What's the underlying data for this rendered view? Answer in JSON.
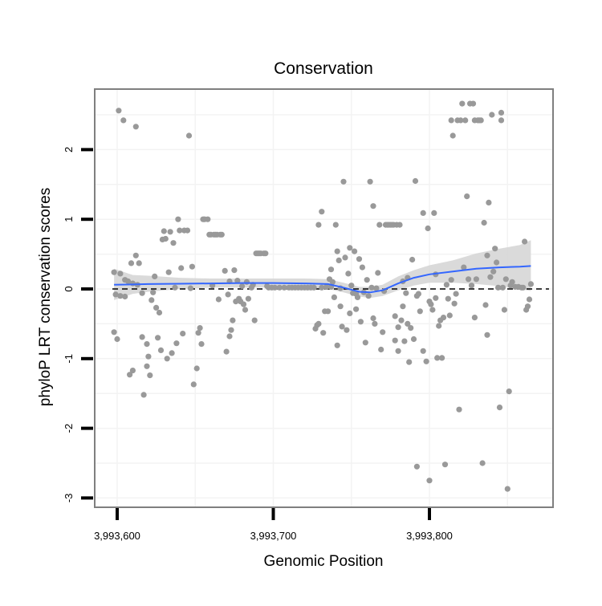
{
  "chart_data": {
    "type": "scatter",
    "title": "Conservation",
    "xlabel": "Genomic Position",
    "ylabel": "phyloP LRT conservation scores",
    "xlim": [
      3993590,
      3993868
    ],
    "ylim": [
      -3.15,
      2.95
    ],
    "x_ticks": [
      3993600,
      3993700,
      3993800
    ],
    "x_tick_labels": [
      "3,993,600",
      "3,993,700",
      "3,993,800"
    ],
    "y_ticks": [
      -3,
      -2,
      -1,
      0,
      1,
      2
    ],
    "y_tick_labels": [
      "-3",
      "-2",
      "-1",
      "0",
      "1",
      "2"
    ],
    "grid": true,
    "reference_line": {
      "y": 0,
      "style": "dashed"
    },
    "colors": {
      "points": "#999999",
      "smooth_line": "#3366ff",
      "band": "#d4d4d4",
      "frame": "#7f7f7f",
      "grid": "#f3f3f3"
    },
    "series": [
      {
        "kind": "points",
        "points": [
          [
            3993598,
            0.24
          ],
          [
            3993599,
            -0.08
          ],
          [
            3993598,
            -0.62
          ],
          [
            3993600,
            -0.72
          ],
          [
            3993601,
            2.56
          ],
          [
            3993602,
            0.22
          ],
          [
            3993602,
            -0.1
          ],
          [
            3993604,
            2.42
          ],
          [
            3993605,
            0.13
          ],
          [
            3993605,
            -0.11
          ],
          [
            3993607,
            0.11
          ],
          [
            3993608,
            -1.23
          ],
          [
            3993609,
            0.37
          ],
          [
            3993610,
            0.08
          ],
          [
            3993610,
            -1.17
          ],
          [
            3993612,
            2.33
          ],
          [
            3993612,
            0.48
          ],
          [
            3993613,
            0.06
          ],
          [
            3993614,
            0.37
          ],
          [
            3993616,
            -0.06
          ],
          [
            3993616,
            -0.69
          ],
          [
            3993617,
            -1.52
          ],
          [
            3993619,
            -1.11
          ],
          [
            3993619,
            -0.79
          ],
          [
            3993620,
            -0.97
          ],
          [
            3993621,
            -1.24
          ],
          [
            3993622,
            -0.16
          ],
          [
            3993623,
            -0.05
          ],
          [
            3993624,
            0.18
          ],
          [
            3993625,
            -0.27
          ],
          [
            3993626,
            -0.7
          ],
          [
            3993627,
            -0.34
          ],
          [
            3993628,
            -0.88
          ],
          [
            3993629,
            0.71
          ],
          [
            3993630,
            0.83
          ],
          [
            3993631,
            0.72
          ],
          [
            3993632,
            -1.0
          ],
          [
            3993633,
            0.24
          ],
          [
            3993634,
            0.82
          ],
          [
            3993635,
            -0.92
          ],
          [
            3993636,
            0.66
          ],
          [
            3993637,
            0.02
          ],
          [
            3993638,
            -0.78
          ],
          [
            3993639,
            1.0
          ],
          [
            3993640,
            0.84
          ],
          [
            3993641,
            0.3
          ],
          [
            3993642,
            -0.64
          ],
          [
            3993643,
            0.84
          ],
          [
            3993645,
            0.84
          ],
          [
            3993646,
            2.2
          ],
          [
            3993647,
            0.01
          ],
          [
            3993648,
            0.32
          ],
          [
            3993649,
            -1.37
          ],
          [
            3993651,
            -1.14
          ],
          [
            3993652,
            -0.63
          ],
          [
            3993653,
            -0.56
          ],
          [
            3993654,
            -0.79
          ],
          [
            3993655,
            1.0
          ],
          [
            3993656,
            1.0
          ],
          [
            3993658,
            1.0
          ],
          [
            3993659,
            0.78
          ],
          [
            3993660,
            0.78
          ],
          [
            3993661,
            0.05
          ],
          [
            3993662,
            0.78
          ],
          [
            3993663,
            0.78
          ],
          [
            3993664,
            0.78
          ],
          [
            3993665,
            -0.15
          ],
          [
            3993666,
            0.78
          ],
          [
            3993667,
            0.78
          ],
          [
            3993669,
            0.26
          ],
          [
            3993670,
            -0.9
          ],
          [
            3993671,
            -0.08
          ],
          [
            3993672,
            -0.68
          ],
          [
            3993672,
            0.11
          ],
          [
            3993673,
            -0.59
          ],
          [
            3993674,
            -0.45
          ],
          [
            3993675,
            0.27
          ],
          [
            3993676,
            -0.18
          ],
          [
            3993677,
            0.12
          ],
          [
            3993678,
            -0.14
          ],
          [
            3993679,
            -0.18
          ],
          [
            3993680,
            0.04
          ],
          [
            3993681,
            -0.22
          ],
          [
            3993682,
            -0.3
          ],
          [
            3993683,
            0.1
          ],
          [
            3993684,
            -0.14
          ],
          [
            3993686,
            0.02
          ],
          [
            3993687,
            0.06
          ],
          [
            3993688,
            -0.45
          ],
          [
            3993689,
            0.51
          ],
          [
            3993690,
            0.51
          ],
          [
            3993691,
            0.51
          ],
          [
            3993692,
            0.51
          ],
          [
            3993694,
            0.51
          ],
          [
            3993695,
            0.51
          ],
          [
            3993696,
            0.04
          ],
          [
            3993697,
            0.02
          ],
          [
            3993699,
            0.02
          ],
          [
            3993701,
            0.02
          ],
          [
            3993704,
            0.02
          ],
          [
            3993707,
            0.02
          ],
          [
            3993710,
            0.02
          ],
          [
            3993712,
            0.02
          ],
          [
            3993714,
            0.02
          ],
          [
            3993716,
            0.02
          ],
          [
            3993718,
            0.02
          ],
          [
            3993720,
            0.02
          ],
          [
            3993722,
            0.02
          ],
          [
            3993724,
            0.02
          ],
          [
            3993726,
            0.02
          ],
          [
            3993727,
            -0.57
          ],
          [
            3993728,
            -0.52
          ],
          [
            3993729,
            0.92
          ],
          [
            3993729,
            -0.5
          ],
          [
            3993731,
            1.11
          ],
          [
            3993731,
            0.02
          ],
          [
            3993732,
            -0.63
          ],
          [
            3993733,
            -0.32
          ],
          [
            3993734,
            0.03
          ],
          [
            3993735,
            -0.32
          ],
          [
            3993736,
            0.14
          ],
          [
            3993737,
            0.03
          ],
          [
            3993737,
            0.28
          ],
          [
            3993738,
            0.1
          ],
          [
            3993739,
            -0.12
          ],
          [
            3993740,
            0.92
          ],
          [
            3993741,
            0.54
          ],
          [
            3993741,
            -0.81
          ],
          [
            3993742,
            0.41
          ],
          [
            3993743,
            0.01
          ],
          [
            3993743,
            -0.25
          ],
          [
            3993744,
            -0.54
          ],
          [
            3993745,
            1.54
          ],
          [
            3993746,
            0.45
          ],
          [
            3993747,
            -0.59
          ],
          [
            3993748,
            0.22
          ],
          [
            3993749,
            0.59
          ],
          [
            3993749,
            -0.35
          ],
          [
            3993750,
            0.05
          ],
          [
            3993751,
            -0.06
          ],
          [
            3993752,
            0.54
          ],
          [
            3993753,
            -0.07
          ],
          [
            3993753,
            -0.29
          ],
          [
            3993754,
            -0.12
          ],
          [
            3993755,
            0.43
          ],
          [
            3993756,
            -0.47
          ],
          [
            3993757,
            0.31
          ],
          [
            3993758,
            -0.05
          ],
          [
            3993759,
            -0.77
          ],
          [
            3993760,
            0.13
          ],
          [
            3993761,
            -0.1
          ],
          [
            3993762,
            1.54
          ],
          [
            3993763,
            0.02
          ],
          [
            3993764,
            1.19
          ],
          [
            3993764,
            -0.42
          ],
          [
            3993765,
            -0.5
          ],
          [
            3993766,
            0.01
          ],
          [
            3993767,
            0.23
          ],
          [
            3993768,
            0.92
          ],
          [
            3993769,
            -0.87
          ],
          [
            3993770,
            -0.62
          ],
          [
            3993771,
            -0.03
          ],
          [
            3993772,
            0.92
          ],
          [
            3993773,
            0.92
          ],
          [
            3993774,
            0.92
          ],
          [
            3993775,
            0.92
          ],
          [
            3993776,
            0.92
          ],
          [
            3993777,
            0.92
          ],
          [
            3993778,
            -0.39
          ],
          [
            3993778,
            -0.74
          ],
          [
            3993779,
            0.92
          ],
          [
            3993780,
            -0.55
          ],
          [
            3993780,
            -0.89
          ],
          [
            3993781,
            0.92
          ],
          [
            3993782,
            -0.45
          ],
          [
            3993783,
            -0.25
          ],
          [
            3993783,
            0.11
          ],
          [
            3993784,
            -0.75
          ],
          [
            3993785,
            -0.06
          ],
          [
            3993786,
            -0.5
          ],
          [
            3993786,
            0.16
          ],
          [
            3993787,
            -1.05
          ],
          [
            3993788,
            -0.56
          ],
          [
            3993789,
            0.42
          ],
          [
            3993790,
            -0.72
          ],
          [
            3993791,
            1.55
          ],
          [
            3993792,
            -0.1
          ],
          [
            3993792,
            -2.55
          ],
          [
            3993793,
            -0.07
          ],
          [
            3993794,
            -0.32
          ],
          [
            3993796,
            1.09
          ],
          [
            3993796,
            -0.89
          ],
          [
            3993798,
            -1.04
          ],
          [
            3993799,
            0.87
          ],
          [
            3993800,
            -0.18
          ],
          [
            3993800,
            -2.75
          ],
          [
            3993801,
            -0.22
          ],
          [
            3993802,
            -0.3
          ],
          [
            3993803,
            1.09
          ],
          [
            3993804,
            0.21
          ],
          [
            3993804,
            -0.13
          ],
          [
            3993805,
            -0.99
          ],
          [
            3993806,
            -0.53
          ],
          [
            3993807,
            -0.45
          ],
          [
            3993808,
            -0.99
          ],
          [
            3993809,
            -0.41
          ],
          [
            3993810,
            -2.52
          ],
          [
            3993811,
            0.06
          ],
          [
            3993812,
            -0.14
          ],
          [
            3993813,
            -0.38
          ],
          [
            3993814,
            0.13
          ],
          [
            3993814,
            2.42
          ],
          [
            3993815,
            2.2
          ],
          [
            3993816,
            -0.21
          ],
          [
            3993817,
            -0.07
          ],
          [
            3993818,
            2.42
          ],
          [
            3993819,
            -1.73
          ],
          [
            3993820,
            2.42
          ],
          [
            3993821,
            2.66
          ],
          [
            3993822,
            0.31
          ],
          [
            3993823,
            2.42
          ],
          [
            3993824,
            1.33
          ],
          [
            3993825,
            0.14
          ],
          [
            3993826,
            2.66
          ],
          [
            3993827,
            0.05
          ],
          [
            3993828,
            2.66
          ],
          [
            3993829,
            2.42
          ],
          [
            3993829,
            -0.41
          ],
          [
            3993830,
            0.14
          ],
          [
            3993831,
            2.42
          ],
          [
            3993832,
            2.42
          ],
          [
            3993833,
            2.42
          ],
          [
            3993834,
            -2.5
          ],
          [
            3993835,
            0.95
          ],
          [
            3993836,
            -0.23
          ],
          [
            3993837,
            0.48
          ],
          [
            3993837,
            -0.66
          ],
          [
            3993838,
            1.24
          ],
          [
            3993839,
            0.17
          ],
          [
            3993840,
            2.5
          ],
          [
            3993841,
            0.25
          ],
          [
            3993842,
            0.58
          ],
          [
            3993843,
            0.38
          ],
          [
            3993844,
            0.02
          ],
          [
            3993845,
            -1.7
          ],
          [
            3993846,
            2.42
          ],
          [
            3993846,
            2.53
          ],
          [
            3993847,
            0.02
          ],
          [
            3993848,
            -0.3
          ],
          [
            3993849,
            0.14
          ],
          [
            3993850,
            -2.87
          ],
          [
            3993851,
            -1.47
          ],
          [
            3993852,
            0.05
          ],
          [
            3993853,
            0.1
          ],
          [
            3993855,
            0.03
          ],
          [
            3993857,
            0.03
          ],
          [
            3993859,
            0.02
          ],
          [
            3993861,
            0.68
          ],
          [
            3993862,
            -0.3
          ],
          [
            3993863,
            -0.25
          ],
          [
            3993864,
            -0.15
          ],
          [
            3993865,
            0.07
          ],
          [
            3993860,
            0.02
          ]
        ]
      },
      {
        "kind": "smooth",
        "x": [
          3993598,
          3993610,
          3993620,
          3993640,
          3993660,
          3993680,
          3993700,
          3993720,
          3993735,
          3993745,
          3993755,
          3993762,
          3993770,
          3993780,
          3993790,
          3993800,
          3993815,
          3993830,
          3993845,
          3993858,
          3993865
        ],
        "y": [
          0.06,
          0.065,
          0.07,
          0.075,
          0.08,
          0.085,
          0.085,
          0.08,
          0.07,
          0.02,
          -0.04,
          -0.05,
          -0.02,
          0.08,
          0.16,
          0.21,
          0.25,
          0.29,
          0.31,
          0.32,
          0.33
        ],
        "lower": [
          -0.16,
          -0.07,
          -0.04,
          0.0,
          0.02,
          0.02,
          0.02,
          0.01,
          0.0,
          -0.05,
          -0.11,
          -0.13,
          -0.1,
          -0.02,
          0.05,
          0.09,
          0.09,
          0.07,
          0.04,
          0.0,
          -0.03
        ],
        "upper": [
          0.29,
          0.2,
          0.19,
          0.16,
          0.15,
          0.15,
          0.15,
          0.15,
          0.14,
          0.09,
          0.03,
          0.03,
          0.06,
          0.18,
          0.27,
          0.34,
          0.41,
          0.51,
          0.58,
          0.63,
          0.7
        ]
      }
    ]
  }
}
